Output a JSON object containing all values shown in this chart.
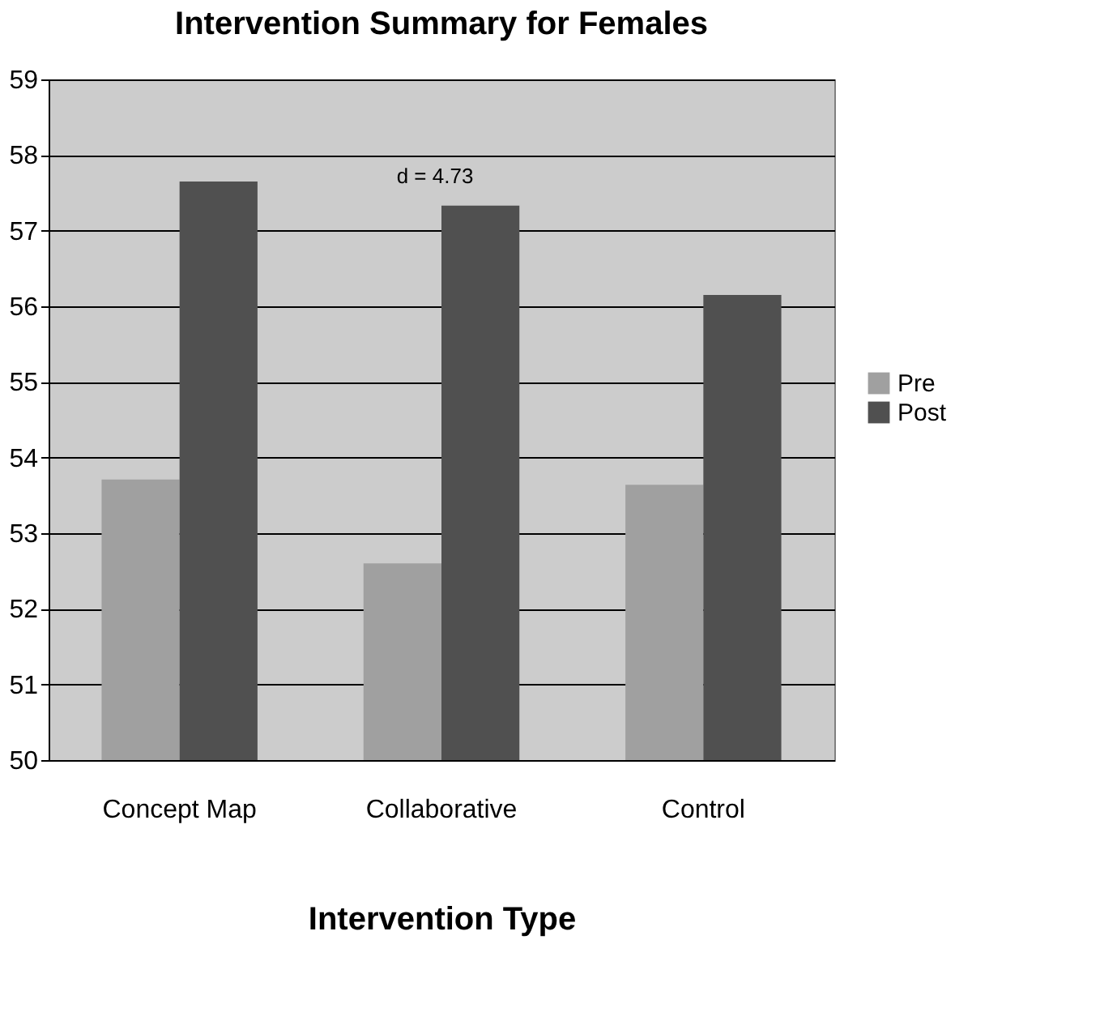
{
  "chart_data": {
    "type": "bar",
    "title": "Intervention Summary for Females",
    "xlabel": "Intervention Type",
    "categories": [
      "Concept Map",
      "Collaborative",
      "Control"
    ],
    "series": [
      {
        "name": "Pre",
        "color": "#a0a0a0",
        "values": [
          53.71,
          52.6,
          53.64
        ]
      },
      {
        "name": "Post",
        "color": "#505050",
        "values": [
          57.65,
          57.33,
          56.15
        ]
      }
    ],
    "annotations": [
      "d = 4.73"
    ],
    "ylim": [
      50,
      59
    ],
    "yticks": [
      50,
      51,
      52,
      53,
      54,
      55,
      56,
      57,
      58,
      59
    ],
    "grid": "y",
    "legend": "right"
  }
}
